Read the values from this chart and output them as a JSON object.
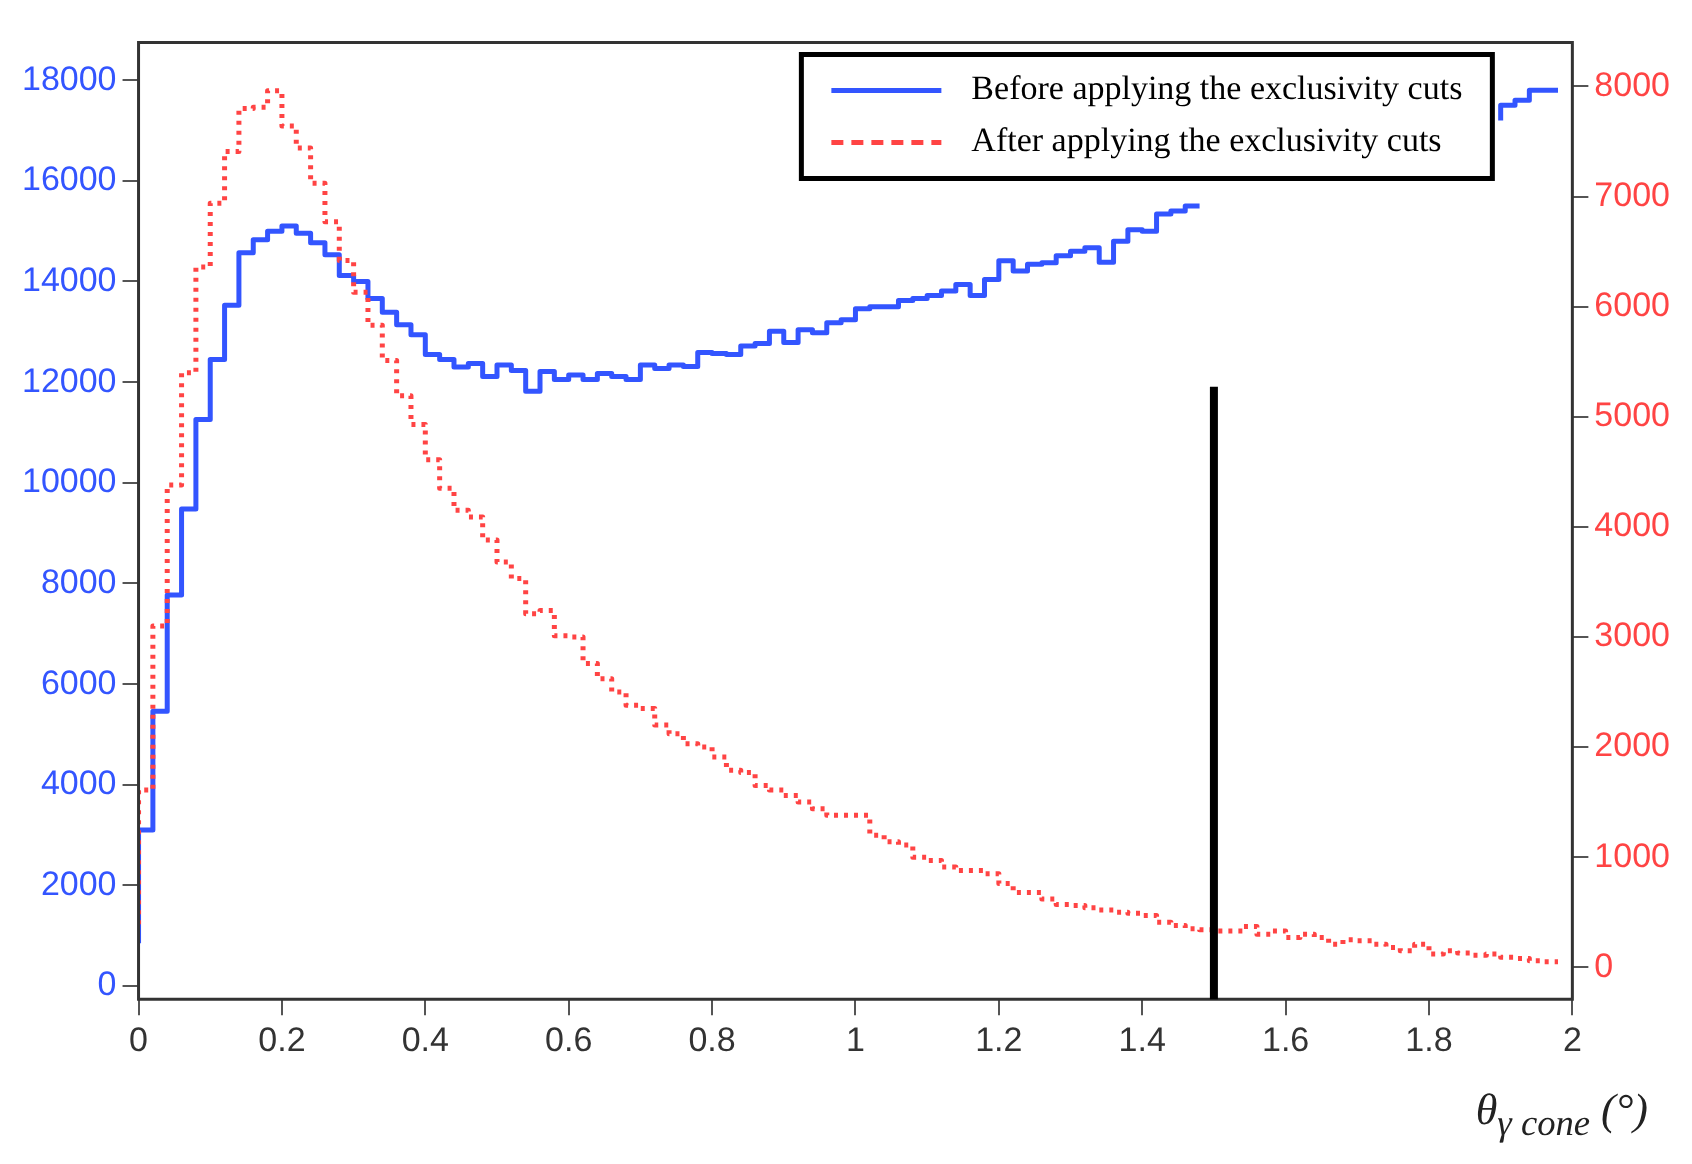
{
  "chart_data": {
    "type": "step",
    "xlabel": "θ$_{γ cone}$ (°)",
    "x": [
      0,
      0.02,
      0.04,
      0.06,
      0.08,
      0.1,
      0.12,
      0.14,
      0.16,
      0.18,
      0.2,
      0.22,
      0.24,
      0.26,
      0.28,
      0.3,
      0.32,
      0.34,
      0.36,
      0.38,
      0.4,
      0.42,
      0.44,
      0.46,
      0.48,
      0.5,
      0.52,
      0.54,
      0.56,
      0.58,
      0.6,
      0.62,
      0.64,
      0.66,
      0.68,
      0.7,
      0.72,
      0.74,
      0.76,
      0.78,
      0.8,
      0.82,
      0.84,
      0.86,
      0.88,
      0.9,
      0.92,
      0.94,
      0.96,
      0.98,
      1,
      1.02,
      1.04,
      1.06,
      1.08,
      1.1,
      1.12,
      1.14,
      1.16,
      1.18,
      1.2,
      1.22,
      1.24,
      1.26,
      1.28,
      1.3,
      1.32,
      1.34,
      1.36,
      1.38,
      1.4,
      1.42,
      1.44,
      1.46,
      1.48,
      1.5,
      1.52,
      1.54,
      1.56,
      1.58,
      1.6,
      1.62,
      1.64,
      1.66,
      1.68,
      1.7,
      1.72,
      1.74,
      1.76,
      1.78,
      1.8,
      1.82,
      1.84,
      1.86,
      1.88,
      1.9,
      1.92,
      1.94,
      1.96,
      1.98
    ],
    "series": [
      {
        "name": "Before applying the exclusivity cuts",
        "color": "#3355ff",
        "line_style": "solid",
        "values": [
          850,
          3100,
          5460,
          7770,
          9480,
          11260,
          12450,
          13530,
          14570,
          14830,
          15000,
          15100,
          14960,
          14770,
          14530,
          14120,
          14000,
          13660,
          13390,
          13140,
          12940,
          12550,
          12450,
          12300,
          12370,
          12110,
          12340,
          12230,
          11820,
          12210,
          12050,
          12140,
          12050,
          12170,
          12110,
          12050,
          12340,
          12270,
          12340,
          12310,
          12590,
          12570,
          12550,
          12720,
          12770,
          13010,
          12790,
          13040,
          12980,
          13180,
          13240,
          13460,
          13500,
          13500,
          13620,
          13660,
          13720,
          13810,
          13940,
          13720,
          14040,
          14410,
          14210,
          14340,
          14370,
          14510,
          14600,
          14670,
          14380,
          14800,
          15030,
          15000,
          15340,
          15400,
          15500,
          null,
          null,
          null,
          null,
          null,
          null,
          null,
          null,
          null,
          null,
          null,
          null,
          null,
          null,
          null,
          null,
          null,
          null,
          null,
          null,
          17200,
          17500,
          17600,
          17800,
          17800
        ]
      },
      {
        "name": "After applying the exclusivity cuts",
        "color": "#ff4444",
        "line_style": "dotted",
        "axis": "y2",
        "values": [
          390,
          1610,
          3100,
          4380,
          5400,
          6360,
          6940,
          7410,
          7800,
          7810,
          7960,
          7640,
          7440,
          7120,
          6770,
          6420,
          6130,
          5830,
          5510,
          5190,
          4930,
          4610,
          4350,
          4150,
          4090,
          3880,
          3680,
          3530,
          3210,
          3240,
          3010,
          3000,
          2760,
          2620,
          2500,
          2380,
          2350,
          2200,
          2120,
          2030,
          2000,
          1910,
          1790,
          1770,
          1650,
          1610,
          1560,
          1500,
          1440,
          1380,
          1380,
          1380,
          1200,
          1140,
          1110,
          1000,
          970,
          910,
          880,
          880,
          850,
          760,
          680,
          680,
          620,
          570,
          560,
          540,
          520,
          500,
          490,
          470,
          410,
          380,
          350,
          340,
          330,
          330,
          370,
          300,
          330,
          270,
          300,
          270,
          210,
          250,
          240,
          210,
          180,
          150,
          210,
          120,
          150,
          130,
          110,
          120,
          90,
          80,
          60,
          50
        ]
      }
    ],
    "xlim": [
      0,
      2
    ],
    "xticks": [
      0,
      0.2,
      0.4,
      0.6,
      0.8,
      1,
      1.2,
      1.4,
      1.6,
      1.8,
      2
    ],
    "ylim": [
      -260,
      18750
    ],
    "yticks": [
      0,
      2000,
      4000,
      6000,
      8000,
      10000,
      12000,
      14000,
      16000,
      18000
    ],
    "y2lim": [
      -290,
      8400
    ],
    "y2ticks": [
      0,
      1000,
      2000,
      3000,
      4000,
      5000,
      6000,
      7000,
      8000
    ],
    "ref_lines": [
      {
        "axis": "x",
        "value": 1.5,
        "color": "#000000"
      }
    ],
    "legend": "top right",
    "grid": false
  }
}
